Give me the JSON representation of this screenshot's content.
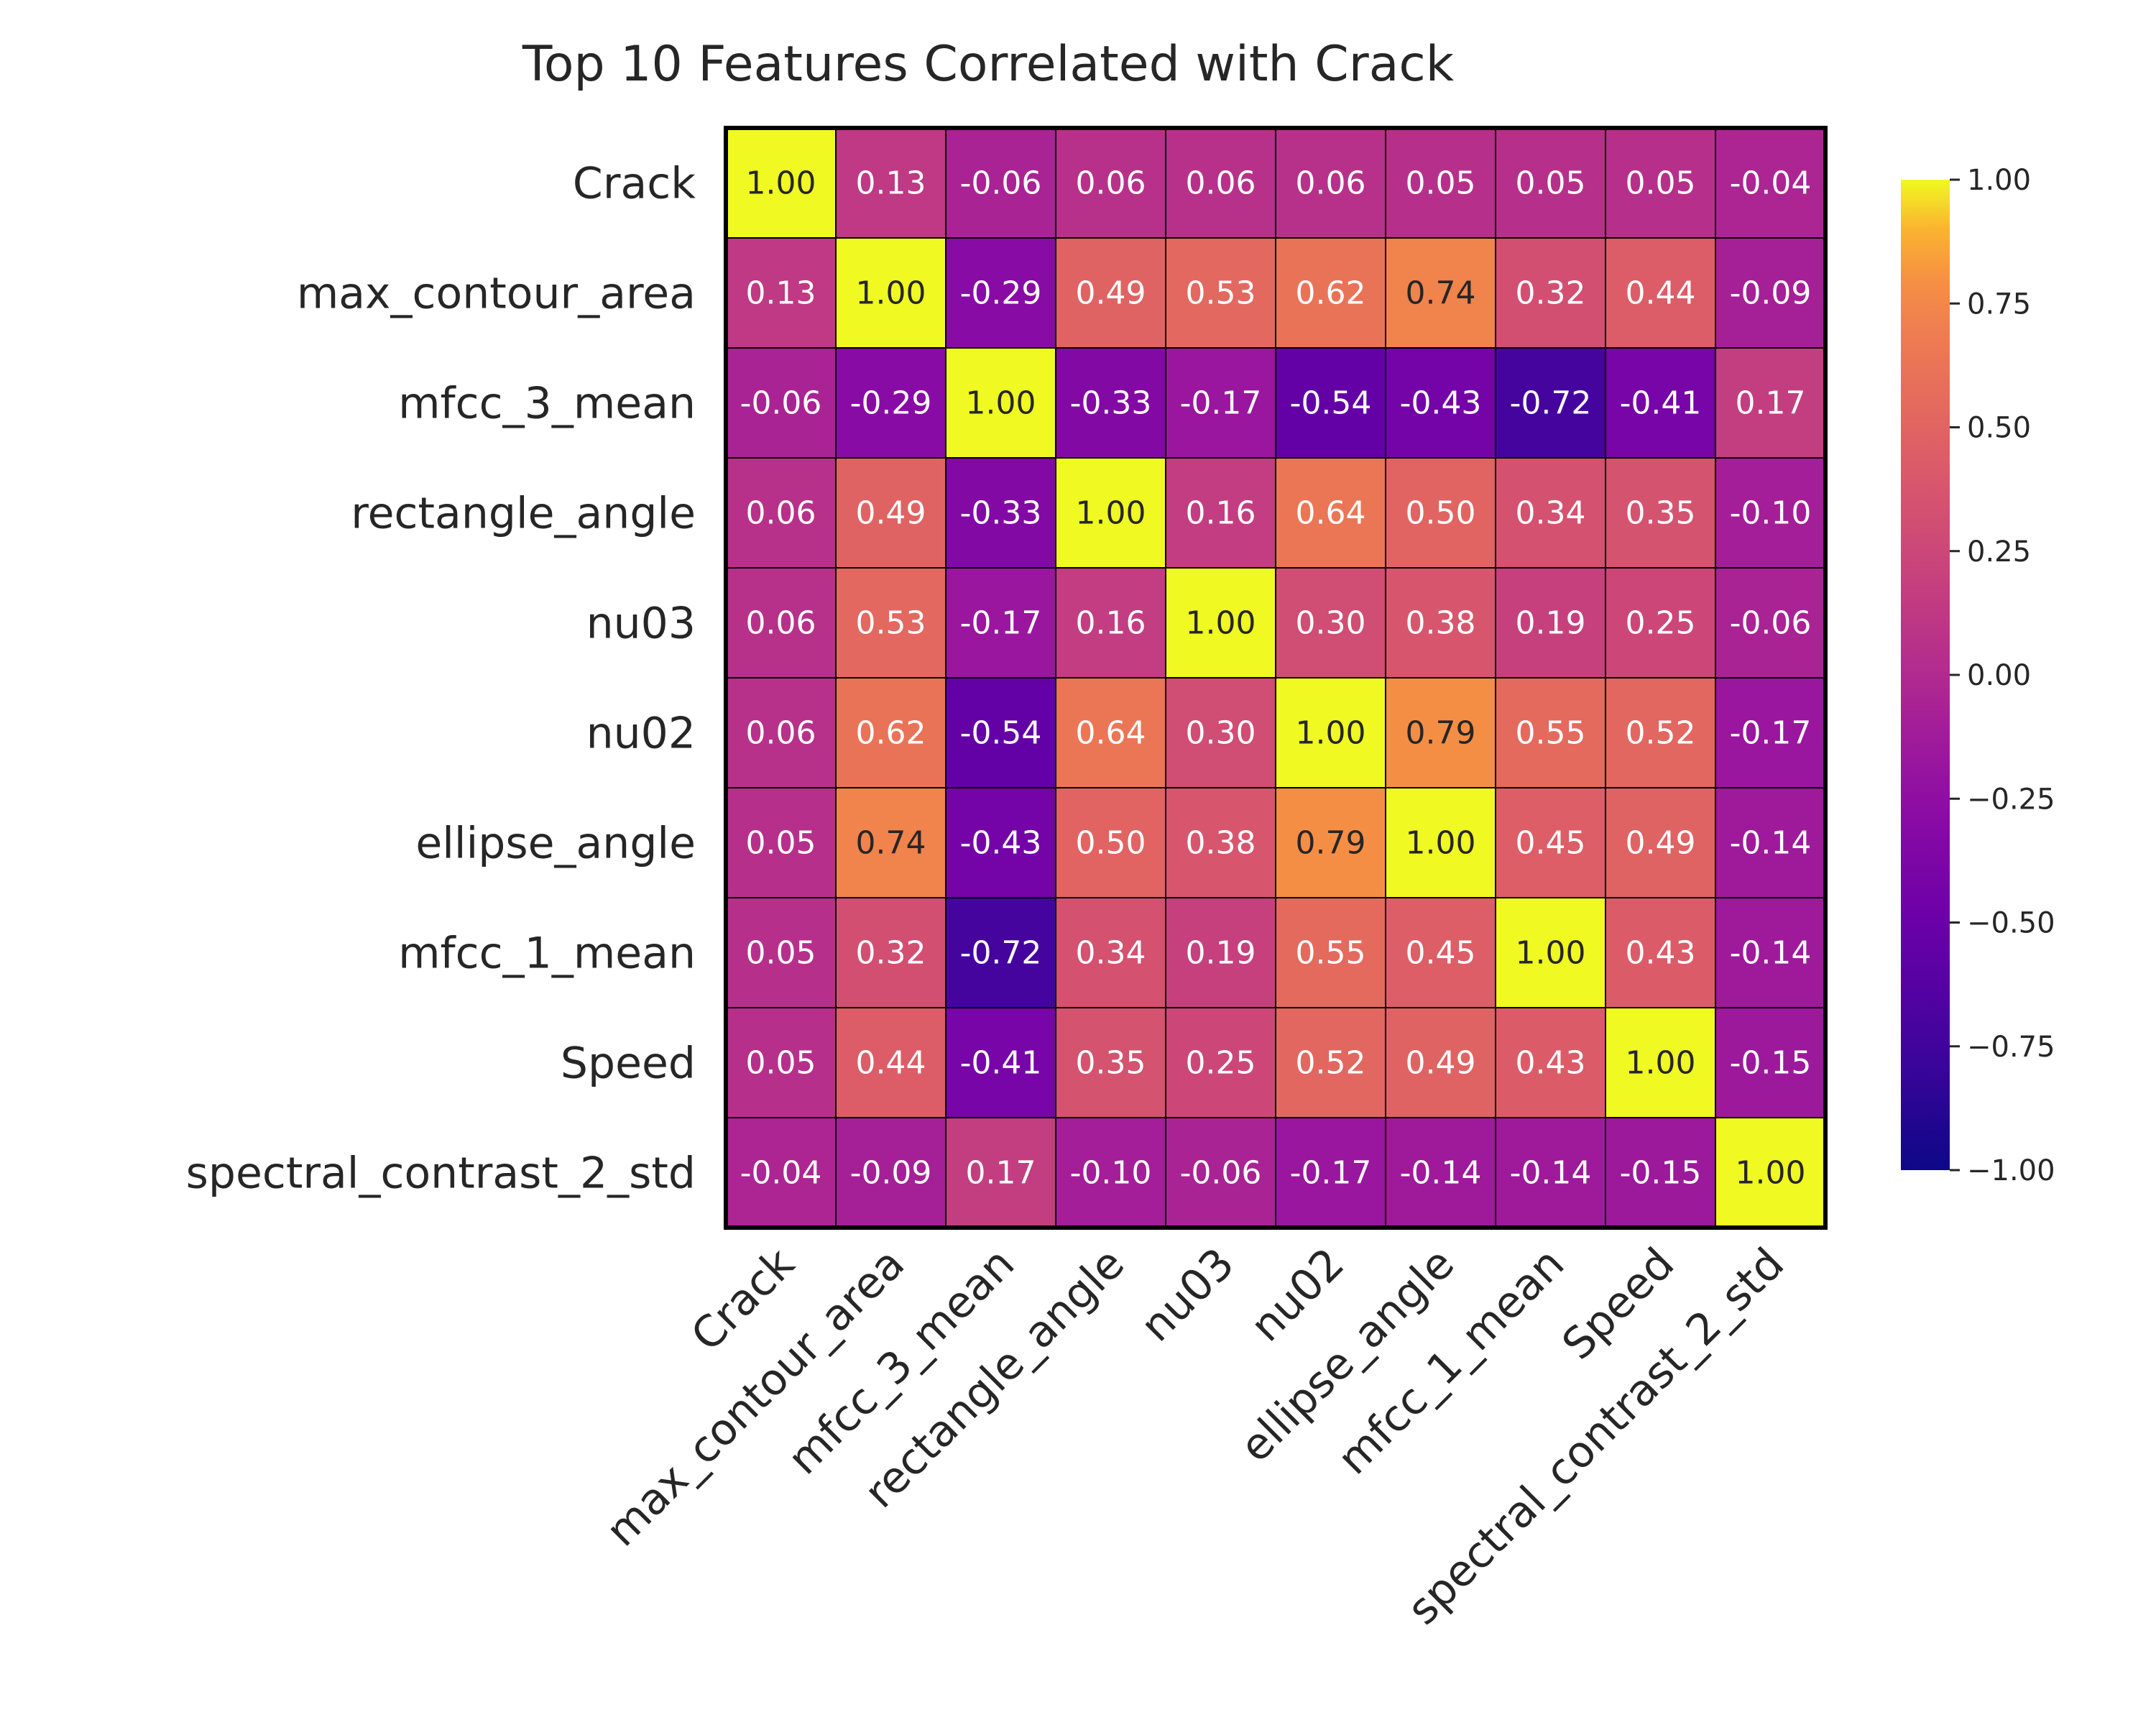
{
  "chart_data": {
    "type": "heatmap",
    "title": "Top 10 Features Correlated with Crack",
    "rows": [
      "Crack",
      "max_contour_area",
      "mfcc_3_mean",
      "rectangle_angle",
      "nu03",
      "nu02",
      "ellipse_angle",
      "mfcc_1_mean",
      "Speed",
      "spectral_contrast_2_std"
    ],
    "columns": [
      "Crack",
      "max_contour_area",
      "mfcc_3_mean",
      "rectangle_angle",
      "nu03",
      "nu02",
      "ellipse_angle",
      "mfcc_1_mean",
      "Speed",
      "spectral_contrast_2_std"
    ],
    "values": [
      [
        1.0,
        0.13,
        -0.06,
        0.06,
        0.06,
        0.06,
        0.05,
        0.05,
        0.05,
        -0.04
      ],
      [
        0.13,
        1.0,
        -0.29,
        0.49,
        0.53,
        0.62,
        0.74,
        0.32,
        0.44,
        -0.09
      ],
      [
        -0.06,
        -0.29,
        1.0,
        -0.33,
        -0.17,
        -0.54,
        -0.43,
        -0.72,
        -0.41,
        0.17
      ],
      [
        0.06,
        0.49,
        -0.33,
        1.0,
        0.16,
        0.64,
        0.5,
        0.34,
        0.35,
        -0.1
      ],
      [
        0.06,
        0.53,
        -0.17,
        0.16,
        1.0,
        0.3,
        0.38,
        0.19,
        0.25,
        -0.06
      ],
      [
        0.06,
        0.62,
        -0.54,
        0.64,
        0.3,
        1.0,
        0.79,
        0.55,
        0.52,
        -0.17
      ],
      [
        0.05,
        0.74,
        -0.43,
        0.5,
        0.38,
        0.79,
        1.0,
        0.45,
        0.49,
        -0.14
      ],
      [
        0.05,
        0.32,
        -0.72,
        0.34,
        0.19,
        0.55,
        0.45,
        1.0,
        0.43,
        -0.14
      ],
      [
        0.05,
        0.44,
        -0.41,
        0.35,
        0.25,
        0.52,
        0.49,
        0.43,
        1.0,
        -0.15
      ],
      [
        -0.04,
        -0.09,
        0.17,
        -0.1,
        -0.06,
        -0.17,
        -0.14,
        -0.14,
        -0.15,
        1.0
      ]
    ],
    "value_labels": [
      [
        "1.00",
        "0.13",
        "-0.06",
        "0.06",
        "0.06",
        "0.06",
        "0.05",
        "0.05",
        "0.05",
        "-0.04"
      ],
      [
        "0.13",
        "1.00",
        "-0.29",
        "0.49",
        "0.53",
        "0.62",
        "0.74",
        "0.32",
        "0.44",
        "-0.09"
      ],
      [
        "-0.06",
        "-0.29",
        "1.00",
        "-0.33",
        "-0.17",
        "-0.54",
        "-0.43",
        "-0.72",
        "-0.41",
        "0.17"
      ],
      [
        "0.06",
        "0.49",
        "-0.33",
        "1.00",
        "0.16",
        "0.64",
        "0.50",
        "0.34",
        "0.35",
        "-0.10"
      ],
      [
        "0.06",
        "0.53",
        "-0.17",
        "0.16",
        "1.00",
        "0.30",
        "0.38",
        "0.19",
        "0.25",
        "-0.06"
      ],
      [
        "0.06",
        "0.62",
        "-0.54",
        "0.64",
        "0.30",
        "1.00",
        "0.79",
        "0.55",
        "0.52",
        "-0.17"
      ],
      [
        "0.05",
        "0.74",
        "-0.43",
        "0.50",
        "0.38",
        "0.79",
        "1.00",
        "0.45",
        "0.49",
        "-0.14"
      ],
      [
        "0.05",
        "0.32",
        "-0.72",
        "0.34",
        "0.19",
        "0.55",
        "0.45",
        "1.00",
        "0.43",
        "-0.14"
      ],
      [
        "0.05",
        "0.44",
        "-0.41",
        "0.35",
        "0.25",
        "0.52",
        "0.49",
        "0.43",
        "1.00",
        "-0.15"
      ],
      [
        "-0.04",
        "-0.09",
        "0.17",
        "-0.10",
        "-0.06",
        "-0.17",
        "-0.14",
        "-0.14",
        "-0.15",
        "1.00"
      ]
    ],
    "colormap": "plasma",
    "vmin": -1.0,
    "vmax": 1.0,
    "colorbar": {
      "ticks": [
        1.0,
        0.75,
        0.5,
        0.25,
        0.0,
        -0.25,
        -0.5,
        -0.75,
        -1.0
      ],
      "tick_labels": [
        "1.00",
        "0.75",
        "0.50",
        "0.25",
        "0.00",
        "−0.25",
        "−0.50",
        "−0.75",
        "−1.00"
      ],
      "placement": "right"
    },
    "grid": true,
    "cell_border_color": "#000000"
  }
}
